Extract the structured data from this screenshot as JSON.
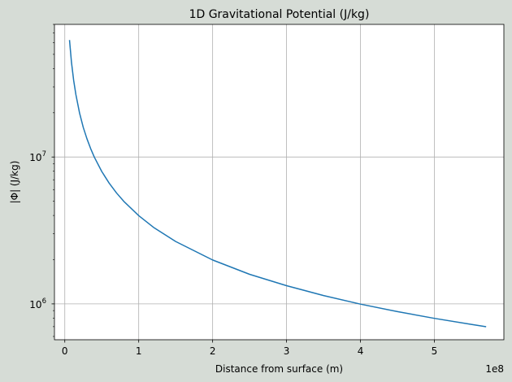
{
  "chart_data": {
    "type": "line",
    "title": "1D Gravitational Potential (J/kg)",
    "xlabel": "Distance from surface (m)",
    "ylabel": "|Φ| (J/kg)",
    "x_offset_label": "1e8",
    "x_scale_factor": 100000000,
    "xlim": [
      -14000000,
      594000000
    ],
    "ylim": [
      570000,
      80000000
    ],
    "yscale": "log",
    "grid": true,
    "x_ticks": [
      {
        "value": 0,
        "label": "0"
      },
      {
        "value": 100000000,
        "label": "1"
      },
      {
        "value": 200000000,
        "label": "2"
      },
      {
        "value": 300000000,
        "label": "3"
      },
      {
        "value": 400000000,
        "label": "4"
      },
      {
        "value": 500000000,
        "label": "5"
      }
    ],
    "y_ticks": [
      {
        "value": 1000000,
        "base": "10",
        "exp": "6"
      },
      {
        "value": 10000000,
        "base": "10",
        "exp": "7"
      }
    ],
    "series": [
      {
        "color": "#1f77b4",
        "x": [
          6370000,
          9000000,
          12000000,
          15000000,
          20000000,
          25000000,
          30000000,
          35000000,
          40000000,
          50000000,
          60000000,
          70000000,
          80000000,
          100000000,
          120000000,
          150000000,
          200000000,
          250000000,
          300000000,
          350000000,
          400000000,
          450000000,
          500000000,
          550000000,
          570000000
        ],
        "y": [
          62600000,
          44300000,
          33200000,
          26600000,
          19900000,
          15900000,
          13300000,
          11400000,
          9970000,
          7970000,
          6640000,
          5690000,
          4980000,
          3990000,
          3320000,
          2660000,
          1990000,
          1590000,
          1330000,
          1140000,
          996000,
          886000,
          797000,
          725000,
          699000
        ]
      }
    ]
  }
}
